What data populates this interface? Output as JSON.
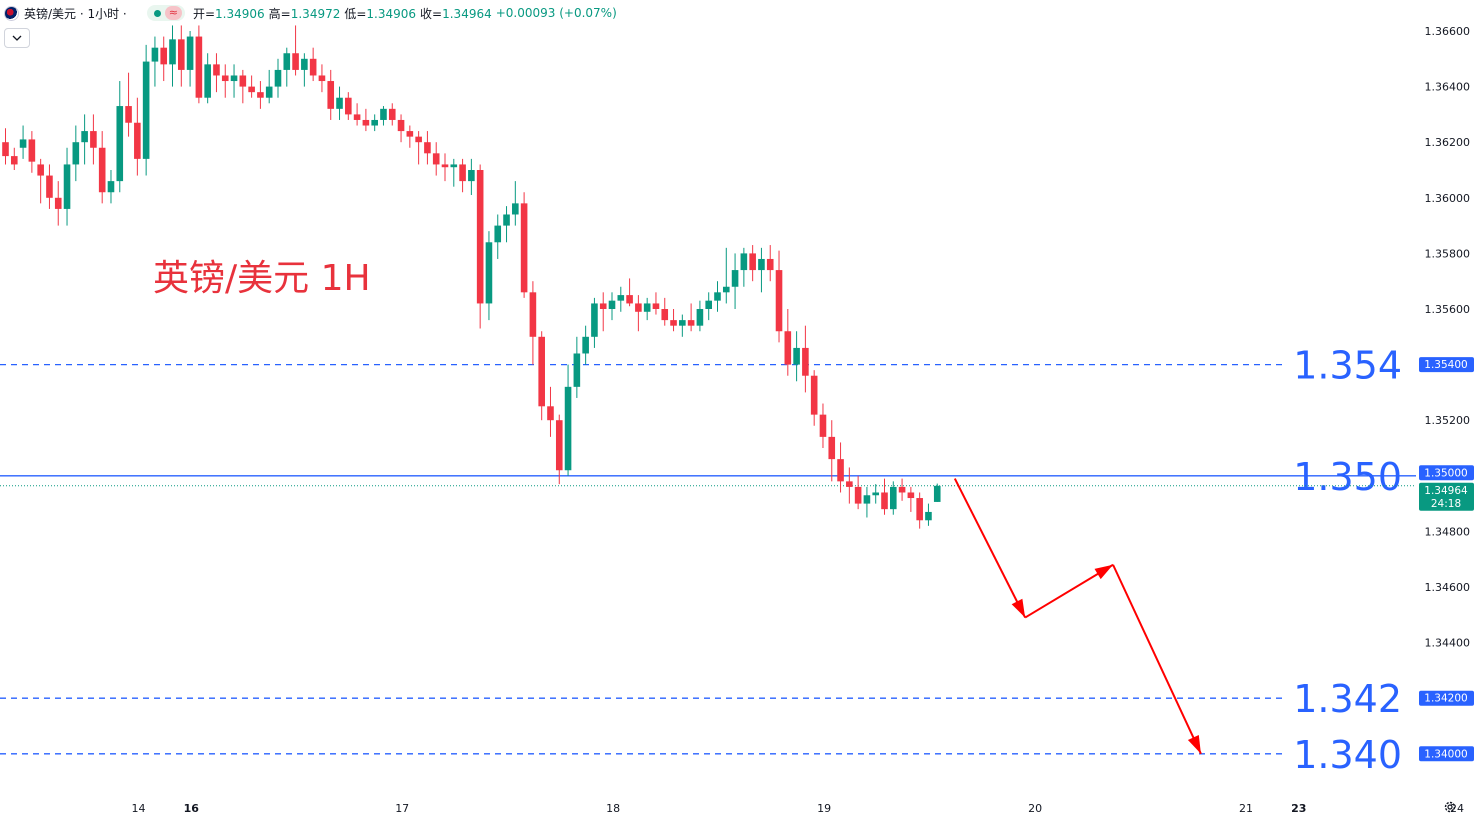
{
  "header": {
    "symbol": "英镑/美元 · 1小时 ·",
    "open_label": "开=",
    "open_value": "1.34906",
    "high_label": "高=",
    "high_value": "1.34972",
    "low_label": "低=",
    "low_value": "1.34906",
    "close_label": "收=",
    "close_value": "1.34964",
    "change": "+0.00093 (+0.07%)",
    "collapse_icon": "chevron-down-icon",
    "status_icon": "market-open-dot-icon",
    "wave_icon": "approx-wave-icon"
  },
  "settings_icon": "gear-icon",
  "colors": {
    "up": "#089981",
    "down": "#f23645",
    "level": "#2962ff",
    "arrow": "#ff0000",
    "annotation": "#e8323c"
  },
  "chart_data": {
    "type": "candlestick",
    "title": "英镑/美元 1H",
    "ylim": [
      1.3375,
      1.3672
    ],
    "price_ticks": [
      "1.36600",
      "1.36400",
      "1.36200",
      "1.36000",
      "1.35800",
      "1.35600",
      "1.35200",
      "1.34800",
      "1.34600",
      "1.34400"
    ],
    "date_labels": [
      {
        "i": 0,
        "label": "14",
        "bold": false
      },
      {
        "i": 6,
        "label": "16",
        "bold": true
      },
      {
        "i": 30,
        "label": "17",
        "bold": false
      },
      {
        "i": 54,
        "label": "18",
        "bold": false
      },
      {
        "i": 78,
        "label": "19",
        "bold": false
      },
      {
        "i": 102,
        "label": "20",
        "bold": false
      },
      {
        "i": 126,
        "label": "21",
        "bold": false
      },
      {
        "i": 132,
        "label": "23",
        "bold": true
      },
      {
        "i": 150,
        "label": "24",
        "bold": false
      }
    ],
    "candles": [
      [
        1.362,
        1.3625,
        1.3612,
        1.3615
      ],
      [
        1.3615,
        1.3618,
        1.361,
        1.3612
      ],
      [
        1.3618,
        1.3626,
        1.3614,
        1.3621
      ],
      [
        1.3621,
        1.3624,
        1.3609,
        1.3613
      ],
      [
        1.3612,
        1.3614,
        1.3598,
        1.3608
      ],
      [
        1.3608,
        1.3612,
        1.3596,
        1.36
      ],
      [
        1.36,
        1.3606,
        1.359,
        1.3596
      ],
      [
        1.3596,
        1.3618,
        1.359,
        1.3612
      ],
      [
        1.3612,
        1.3626,
        1.3606,
        1.362
      ],
      [
        1.362,
        1.363,
        1.3612,
        1.3624
      ],
      [
        1.3624,
        1.363,
        1.3612,
        1.3618
      ],
      [
        1.3618,
        1.3624,
        1.3598,
        1.3602
      ],
      [
        1.3602,
        1.361,
        1.3598,
        1.3606
      ],
      [
        1.3606,
        1.3642,
        1.3602,
        1.3633
      ],
      [
        1.3633,
        1.3645,
        1.3622,
        1.3627
      ],
      [
        1.3627,
        1.3636,
        1.3608,
        1.3614
      ],
      [
        1.3614,
        1.3655,
        1.3608,
        1.3649
      ],
      [
        1.3649,
        1.3658,
        1.364,
        1.3654
      ],
      [
        1.3654,
        1.3658,
        1.3642,
        1.3648
      ],
      [
        1.3648,
        1.3662,
        1.364,
        1.3657
      ],
      [
        1.3657,
        1.3662,
        1.364,
        1.3646
      ],
      [
        1.3646,
        1.366,
        1.364,
        1.3658
      ],
      [
        1.3658,
        1.3662,
        1.3634,
        1.3636
      ],
      [
        1.3636,
        1.3652,
        1.3634,
        1.3648
      ],
      [
        1.3648,
        1.3652,
        1.3638,
        1.3644
      ],
      [
        1.3644,
        1.3648,
        1.3636,
        1.3642
      ],
      [
        1.3642,
        1.3648,
        1.3636,
        1.3644
      ],
      [
        1.3644,
        1.3646,
        1.3634,
        1.364
      ],
      [
        1.364,
        1.3644,
        1.3636,
        1.3638
      ],
      [
        1.3638,
        1.3642,
        1.3632,
        1.3636
      ],
      [
        1.3636,
        1.3646,
        1.3634,
        1.364
      ],
      [
        1.364,
        1.365,
        1.3636,
        1.3646
      ],
      [
        1.3646,
        1.3654,
        1.364,
        1.3652
      ],
      [
        1.3652,
        1.3662,
        1.3644,
        1.3646
      ],
      [
        1.3646,
        1.3652,
        1.364,
        1.365
      ],
      [
        1.365,
        1.3654,
        1.3642,
        1.3644
      ],
      [
        1.3644,
        1.3648,
        1.3638,
        1.3642
      ],
      [
        1.3642,
        1.3646,
        1.3628,
        1.3632
      ],
      [
        1.3632,
        1.364,
        1.3628,
        1.3636
      ],
      [
        1.3636,
        1.3638,
        1.3628,
        1.363
      ],
      [
        1.363,
        1.3634,
        1.3626,
        1.3628
      ],
      [
        1.3628,
        1.3632,
        1.3624,
        1.3626
      ],
      [
        1.3626,
        1.363,
        1.3624,
        1.3628
      ],
      [
        1.3628,
        1.3633,
        1.3626,
        1.3632
      ],
      [
        1.3632,
        1.3634,
        1.3626,
        1.3628
      ],
      [
        1.3628,
        1.363,
        1.362,
        1.3624
      ],
      [
        1.3624,
        1.3626,
        1.3618,
        1.3622
      ],
      [
        1.3622,
        1.3624,
        1.3612,
        1.362
      ],
      [
        1.362,
        1.3624,
        1.3612,
        1.3616
      ],
      [
        1.3616,
        1.362,
        1.3608,
        1.3612
      ],
      [
        1.3612,
        1.3616,
        1.3606,
        1.3611
      ],
      [
        1.3611,
        1.3614,
        1.3604,
        1.3612
      ],
      [
        1.3612,
        1.3614,
        1.3602,
        1.3606
      ],
      [
        1.3606,
        1.3614,
        1.3601,
        1.361
      ],
      [
        1.361,
        1.3612,
        1.3553,
        1.3562
      ],
      [
        1.3562,
        1.3588,
        1.3556,
        1.3584
      ],
      [
        1.3584,
        1.3594,
        1.3578,
        1.359
      ],
      [
        1.359,
        1.3597,
        1.3584,
        1.3594
      ],
      [
        1.3594,
        1.3606,
        1.359,
        1.3598
      ],
      [
        1.3598,
        1.3602,
        1.3564,
        1.3566
      ],
      [
        1.3566,
        1.357,
        1.354,
        1.355
      ],
      [
        1.355,
        1.3552,
        1.352,
        1.3525
      ],
      [
        1.3525,
        1.3532,
        1.3514,
        1.352
      ],
      [
        1.352,
        1.3522,
        1.3497,
        1.3502
      ],
      [
        1.3502,
        1.354,
        1.35,
        1.3532
      ],
      [
        1.3532,
        1.355,
        1.3528,
        1.3544
      ],
      [
        1.3544,
        1.3554,
        1.354,
        1.355
      ],
      [
        1.355,
        1.3564,
        1.3546,
        1.3562
      ],
      [
        1.3562,
        1.3566,
        1.3552,
        1.356
      ],
      [
        1.356,
        1.3566,
        1.3556,
        1.3563
      ],
      [
        1.3563,
        1.3568,
        1.3559,
        1.3565
      ],
      [
        1.3565,
        1.3571,
        1.3561,
        1.3562
      ],
      [
        1.3562,
        1.3565,
        1.3552,
        1.3559
      ],
      [
        1.3559,
        1.3564,
        1.3556,
        1.3562
      ],
      [
        1.3562,
        1.3566,
        1.3558,
        1.356
      ],
      [
        1.356,
        1.3564,
        1.3554,
        1.3556
      ],
      [
        1.3556,
        1.356,
        1.3552,
        1.3554
      ],
      [
        1.3554,
        1.3558,
        1.355,
        1.3556
      ],
      [
        1.3556,
        1.3562,
        1.3552,
        1.3554
      ],
      [
        1.3554,
        1.3563,
        1.3552,
        1.356
      ],
      [
        1.356,
        1.3566,
        1.3556,
        1.3563
      ],
      [
        1.3563,
        1.357,
        1.3559,
        1.3566
      ],
      [
        1.3566,
        1.3582,
        1.3562,
        1.3568
      ],
      [
        1.3568,
        1.358,
        1.356,
        1.3574
      ],
      [
        1.3574,
        1.3582,
        1.3568,
        1.358
      ],
      [
        1.358,
        1.3583,
        1.357,
        1.3574
      ],
      [
        1.3574,
        1.3582,
        1.3566,
        1.3578
      ],
      [
        1.3578,
        1.3583,
        1.357,
        1.3574
      ],
      [
        1.3574,
        1.3581,
        1.3548,
        1.3552
      ],
      [
        1.3552,
        1.356,
        1.3536,
        1.354
      ],
      [
        1.354,
        1.3552,
        1.3534,
        1.3546
      ],
      [
        1.3546,
        1.3554,
        1.353,
        1.3536
      ],
      [
        1.3536,
        1.3538,
        1.3518,
        1.3522
      ],
      [
        1.3522,
        1.3526,
        1.351,
        1.3514
      ],
      [
        1.3514,
        1.352,
        1.3498,
        1.3506
      ],
      [
        1.3506,
        1.3512,
        1.3494,
        1.3498
      ],
      [
        1.3498,
        1.3503,
        1.349,
        1.3496
      ],
      [
        1.3496,
        1.35,
        1.3488,
        1.349
      ],
      [
        1.349,
        1.3496,
        1.3485,
        1.3493
      ],
      [
        1.3493,
        1.3497,
        1.349,
        1.3494
      ],
      [
        1.3494,
        1.3499,
        1.3486,
        1.3488
      ],
      [
        1.3488,
        1.3498,
        1.3486,
        1.3496
      ],
      [
        1.3496,
        1.3499,
        1.3491,
        1.3494
      ],
      [
        1.3494,
        1.3496,
        1.3487,
        1.3492
      ],
      [
        1.3492,
        1.3494,
        1.3481,
        1.3484
      ],
      [
        1.3484,
        1.349,
        1.3482,
        1.3487
      ],
      [
        1.34906,
        1.34972,
        1.34906,
        1.34964
      ]
    ],
    "levels": [
      {
        "value": 1.354,
        "label": "1.354",
        "tag": "1.35400",
        "style": "dashed"
      },
      {
        "value": 1.35,
        "label": "1.350",
        "tag": "1.35000",
        "style": "solid"
      },
      {
        "value": 1.342,
        "label": "1.342",
        "tag": "1.34200",
        "style": "dashed"
      },
      {
        "value": 1.34,
        "label": "1.340",
        "tag": "1.34000",
        "style": "dashed"
      }
    ],
    "last_price": {
      "value": 1.34964,
      "tag": "1.34964",
      "countdown": "24:18"
    },
    "projection": [
      {
        "i": 108,
        "p": 1.3499
      },
      {
        "i": 116,
        "p": 1.3449
      },
      {
        "i": 126,
        "p": 1.3468
      },
      {
        "i": 136,
        "p": 1.34
      }
    ]
  }
}
